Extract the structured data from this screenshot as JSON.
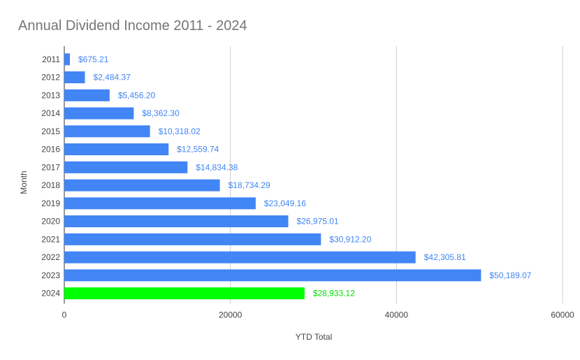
{
  "chart_data": {
    "type": "bar",
    "orientation": "horizontal",
    "title": "Annual Dividend Income 2011 - 2024",
    "xlabel": "YTD Total",
    "ylabel": "Month",
    "xlim": [
      0,
      60000
    ],
    "xticks": [
      "0",
      "20000",
      "40000",
      "60000"
    ],
    "xtick_values": [
      0,
      20000,
      40000,
      60000
    ],
    "grid": true,
    "legend": "none",
    "categories": [
      "2011",
      "2012",
      "2013",
      "2014",
      "2015",
      "2016",
      "2017",
      "2018",
      "2019",
      "2020",
      "2021",
      "2022",
      "2023",
      "2024"
    ],
    "values": [
      675.21,
      2484.37,
      5456.2,
      8362.3,
      10318.02,
      12559.74,
      14834.38,
      18734.29,
      23049.16,
      26975.01,
      30912.2,
      42305.81,
      50189.07,
      28933.12
    ],
    "data_labels": [
      "$675.21",
      "$2,484.37",
      "$5,456.20",
      "$8,362.30",
      "$10,318.02",
      "$12,559.74",
      "$14,834.38",
      "$18,734.29",
      "$23,049.16",
      "$26,975.01",
      "$30,912.20",
      "$42,305.81",
      "$50,189.07",
      "$28,933.12"
    ],
    "bar_colors": [
      "#4285f4",
      "#4285f4",
      "#4285f4",
      "#4285f4",
      "#4285f4",
      "#4285f4",
      "#4285f4",
      "#4285f4",
      "#4285f4",
      "#4285f4",
      "#4285f4",
      "#4285f4",
      "#4285f4",
      "#00ff00"
    ],
    "label_colors": [
      "#4285f4",
      "#4285f4",
      "#4285f4",
      "#4285f4",
      "#4285f4",
      "#4285f4",
      "#4285f4",
      "#4285f4",
      "#4285f4",
      "#4285f4",
      "#4285f4",
      "#4285f4",
      "#4285f4",
      "#00dd00"
    ]
  },
  "colors": {
    "title": "#757575",
    "axis_text": "#444444",
    "grid": "#cccccc",
    "axis_line": "#333333"
  }
}
